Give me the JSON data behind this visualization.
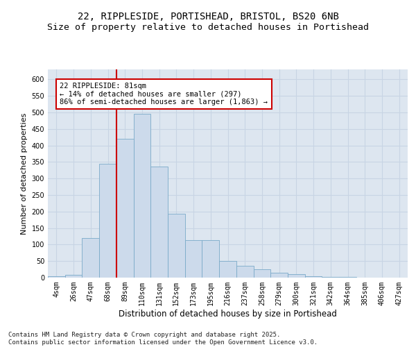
{
  "title_line1": "22, RIPPLESIDE, PORTISHEAD, BRISTOL, BS20 6NB",
  "title_line2": "Size of property relative to detached houses in Portishead",
  "xlabel": "Distribution of detached houses by size in Portishead",
  "ylabel": "Number of detached properties",
  "categories": [
    "4sqm",
    "26sqm",
    "47sqm",
    "68sqm",
    "89sqm",
    "110sqm",
    "131sqm",
    "152sqm",
    "173sqm",
    "195sqm",
    "216sqm",
    "237sqm",
    "258sqm",
    "279sqm",
    "300sqm",
    "321sqm",
    "342sqm",
    "364sqm",
    "385sqm",
    "406sqm",
    "427sqm"
  ],
  "values": [
    5,
    8,
    120,
    345,
    420,
    495,
    335,
    193,
    113,
    113,
    50,
    35,
    25,
    15,
    10,
    5,
    3,
    2,
    1,
    1,
    1
  ],
  "bar_color": "#ccdaeb",
  "bar_edge_color": "#7aaac8",
  "bar_edge_width": 0.6,
  "vline_color": "#cc0000",
  "vline_index": 3.5,
  "annotation_text": "22 RIPPLESIDE: 81sqm\n← 14% of detached houses are smaller (297)\n86% of semi-detached houses are larger (1,863) →",
  "annotation_box_facecolor": "#ffffff",
  "annotation_box_edgecolor": "#cc0000",
  "annotation_fontsize": 7.5,
  "ylim": [
    0,
    630
  ],
  "yticks": [
    0,
    50,
    100,
    150,
    200,
    250,
    300,
    350,
    400,
    450,
    500,
    550,
    600
  ],
  "grid_color": "#c8d4e4",
  "background_color": "#dde6f0",
  "footer_text": "Contains HM Land Registry data © Crown copyright and database right 2025.\nContains public sector information licensed under the Open Government Licence v3.0.",
  "title_fontsize": 10,
  "subtitle_fontsize": 9.5,
  "xlabel_fontsize": 8.5,
  "ylabel_fontsize": 8,
  "tick_fontsize": 7,
  "footer_fontsize": 6.5
}
